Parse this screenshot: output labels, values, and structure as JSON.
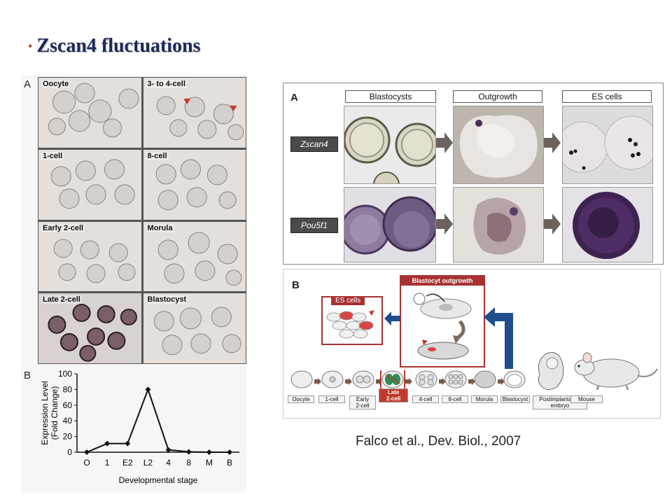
{
  "title": {
    "bullet": "•",
    "text": "Zscan4 fluctuations"
  },
  "left_figure": {
    "panel_a": "A",
    "panel_b": "B",
    "stages": [
      "Oocyte",
      "3- to 4-cell",
      "1-cell",
      "8-cell",
      "Early 2-cell",
      "Morula",
      "Late 2-cell",
      "Blastocyst"
    ]
  },
  "chart_data": {
    "type": "line",
    "categories": [
      "O",
      "1",
      "E2",
      "L2",
      "4",
      "8",
      "M",
      "B"
    ],
    "values": [
      0,
      11,
      11,
      80,
      3,
      0.5,
      0,
      0
    ],
    "xlabel": "Developmental stage",
    "ylabel": "Expression Level\n(Fold Change)",
    "ylim": [
      0,
      100
    ],
    "yticks": [
      0,
      20,
      40,
      60,
      80,
      100
    ],
    "grid": false,
    "marker_color": "#111111"
  },
  "right_figure_a": {
    "panel": "A",
    "columns": [
      "Blastocysts",
      "Outgrowth",
      "ES cells"
    ],
    "rows": [
      "Zscan4",
      "Pou5f1"
    ]
  },
  "right_figure_b": {
    "panel": "B",
    "es_cells": "ES cells",
    "outgrowth": "Blastocyt outgrowth",
    "stages": [
      "Oocyte",
      "1-cell",
      "Early\n2-cell",
      "Late\n2-cell",
      "4-cell",
      "8-cell",
      "Morula",
      "Blastocyst",
      "Postimplantation\nembryo",
      "Mouse"
    ],
    "highlight_color": "#c0392b",
    "arrow_color": "#1f4e8c"
  },
  "citation": "Falco et al., Dev. Biol., 2007",
  "colors": {
    "title": "#1f2a5a",
    "bullet": "#c0392b"
  }
}
